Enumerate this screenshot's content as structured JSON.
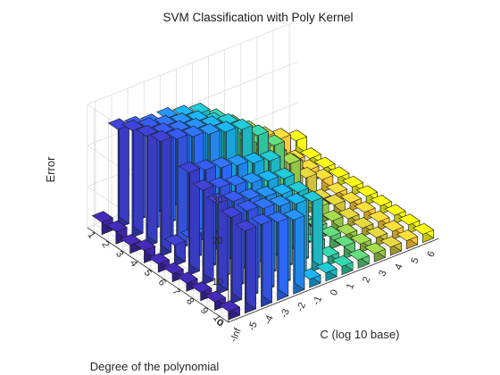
{
  "chart_data": {
    "type": "bar3",
    "title": "SVM Classification with Poly Kernel",
    "xlabel": "C (log 10 base)",
    "ylabel": "Degree of the polynomial",
    "zlabel": "Error",
    "x_categories": [
      "-Inf",
      "-5",
      "-4",
      "-3",
      "-2",
      "-1",
      "0",
      "1",
      "2",
      "3",
      "4",
      "5",
      "6"
    ],
    "y_categories": [
      "1",
      "2",
      "3",
      "4",
      "5",
      "6",
      "7",
      "8",
      "9",
      "10"
    ],
    "zlim": [
      0,
      30
    ],
    "zticks": [
      0,
      10,
      20,
      30
    ],
    "grid": true,
    "colormap": "parula",
    "values": [
      [
        3,
        24,
        23,
        22,
        22,
        21,
        20,
        17,
        14,
        11,
        8,
        6,
        4
      ],
      [
        3,
        26,
        25,
        24,
        23,
        22,
        20,
        16,
        12,
        8,
        5,
        3,
        2
      ],
      [
        2,
        27,
        26,
        25,
        24,
        23,
        22,
        18,
        14,
        10,
        6,
        3,
        2
      ],
      [
        3,
        28,
        27,
        26,
        25,
        24,
        23,
        20,
        16,
        10,
        5,
        3,
        2
      ],
      [
        2,
        5,
        5,
        4,
        4,
        3,
        3,
        3,
        2,
        2,
        2,
        2,
        2
      ],
      [
        2,
        25,
        24,
        23,
        22,
        21,
        20,
        9,
        2,
        4,
        3,
        2,
        2
      ],
      [
        2,
        23,
        22,
        21,
        20,
        19,
        18,
        4,
        3,
        3,
        2,
        2,
        2
      ],
      [
        2,
        22,
        21,
        20,
        19,
        18,
        17,
        3,
        3,
        2,
        2,
        2,
        2
      ],
      [
        2,
        21,
        21,
        20,
        19,
        18,
        17,
        2,
        3,
        2,
        2,
        2,
        2
      ],
      [
        2,
        20,
        20,
        19,
        18,
        2,
        2,
        2,
        2,
        2,
        2,
        2,
        2
      ]
    ]
  }
}
